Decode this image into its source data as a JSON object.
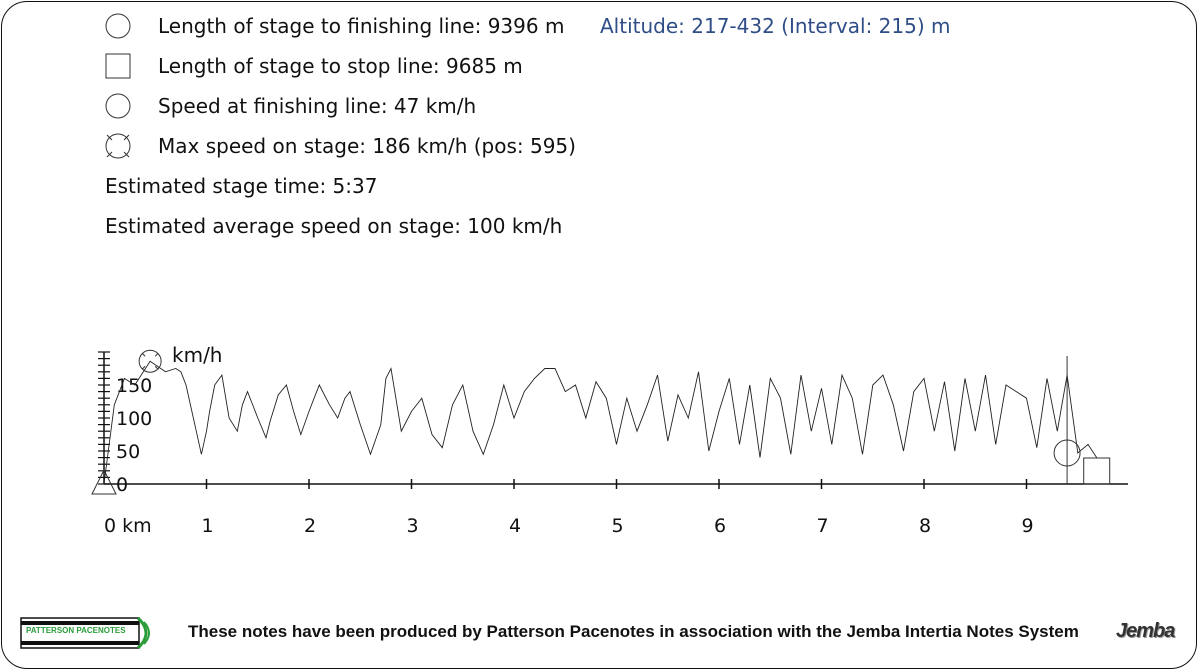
{
  "legend": [
    {
      "icon": "circle-icon",
      "label": "Length of stage to finishing line: 9396 m"
    },
    {
      "icon": "square-icon",
      "label": "Length of stage to stop line: 9685 m"
    },
    {
      "icon": "circle-icon",
      "label": "Speed at finishing line: 47 km/h"
    },
    {
      "icon": "crossed-circle-icon",
      "label": "Max speed on stage: 186 km/h (pos: 595)"
    }
  ],
  "estimated_time": "Estimated stage time: 5:37",
  "estimated_speed": "Estimated average speed on stage: 100 km/h",
  "altitude": "Altitude: 217-432 (Interval: 215) m",
  "footer": {
    "text": "These notes have been produced by Patterson Pacenotes in association with the Jemba Intertia Notes System",
    "logo_left": "PATTERSON PACENOTES",
    "logo_right": "Jemba"
  },
  "chart_data": {
    "type": "line",
    "title": "",
    "xlabel": "",
    "ylabel": "km/h",
    "x_tick_labels": [
      "0 km",
      "1",
      "2",
      "3",
      "4",
      "5",
      "6",
      "7",
      "8",
      "9"
    ],
    "y_tick_labels": [
      "0",
      "50",
      "100",
      "150"
    ],
    "xlim": [
      0,
      10
    ],
    "ylim": [
      0,
      200
    ],
    "series": [
      {
        "x": [
          0.0,
          0.1,
          0.2,
          0.3,
          0.45,
          0.6,
          0.7,
          0.75,
          0.8,
          0.9,
          0.95,
          1.0,
          1.03,
          1.08,
          1.15,
          1.22,
          1.3,
          1.35,
          1.4,
          1.5,
          1.58,
          1.62,
          1.7,
          1.78,
          1.85,
          1.92,
          2.0,
          2.05,
          2.1,
          2.2,
          2.28,
          2.35,
          2.4,
          2.5,
          2.6,
          2.7,
          2.75,
          2.8,
          2.9,
          3.0,
          3.1,
          3.2,
          3.3,
          3.4,
          3.5,
          3.6,
          3.7,
          3.8,
          3.9,
          4.0,
          4.1,
          4.2,
          4.3,
          4.4,
          4.5,
          4.6,
          4.7,
          4.8,
          4.9,
          5.0,
          5.1,
          5.2,
          5.3,
          5.4,
          5.5,
          5.6,
          5.7,
          5.8,
          5.9,
          6.0,
          6.1,
          6.2,
          6.3,
          6.4,
          6.5,
          6.6,
          6.7,
          6.8,
          6.9,
          7.0,
          7.1,
          7.2,
          7.3,
          7.4,
          7.5,
          7.6,
          7.7,
          7.8,
          7.9,
          8.0,
          8.1,
          8.2,
          8.3,
          8.4,
          8.5,
          8.6,
          8.7,
          8.8,
          8.9,
          9.0,
          9.1,
          9.2,
          9.3,
          9.396,
          9.5,
          9.6,
          9.685
        ],
        "y": [
          0,
          120,
          160,
          150,
          186,
          170,
          175,
          170,
          150,
          80,
          45,
          80,
          110,
          150,
          165,
          100,
          80,
          120,
          140,
          100,
          70,
          95,
          135,
          150,
          110,
          75,
          110,
          130,
          150,
          120,
          100,
          130,
          140,
          90,
          45,
          90,
          160,
          175,
          80,
          110,
          130,
          75,
          55,
          120,
          150,
          80,
          45,
          90,
          150,
          100,
          140,
          160,
          175,
          175,
          140,
          150,
          100,
          155,
          130,
          60,
          130,
          80,
          120,
          165,
          65,
          135,
          100,
          170,
          50,
          110,
          160,
          60,
          150,
          40,
          160,
          130,
          45,
          165,
          80,
          145,
          60,
          165,
          130,
          45,
          150,
          165,
          120,
          50,
          140,
          160,
          80,
          155,
          50,
          160,
          80,
          165,
          60,
          150,
          140,
          130,
          55,
          160,
          80,
          165,
          47,
          60,
          40
        ]
      }
    ]
  }
}
